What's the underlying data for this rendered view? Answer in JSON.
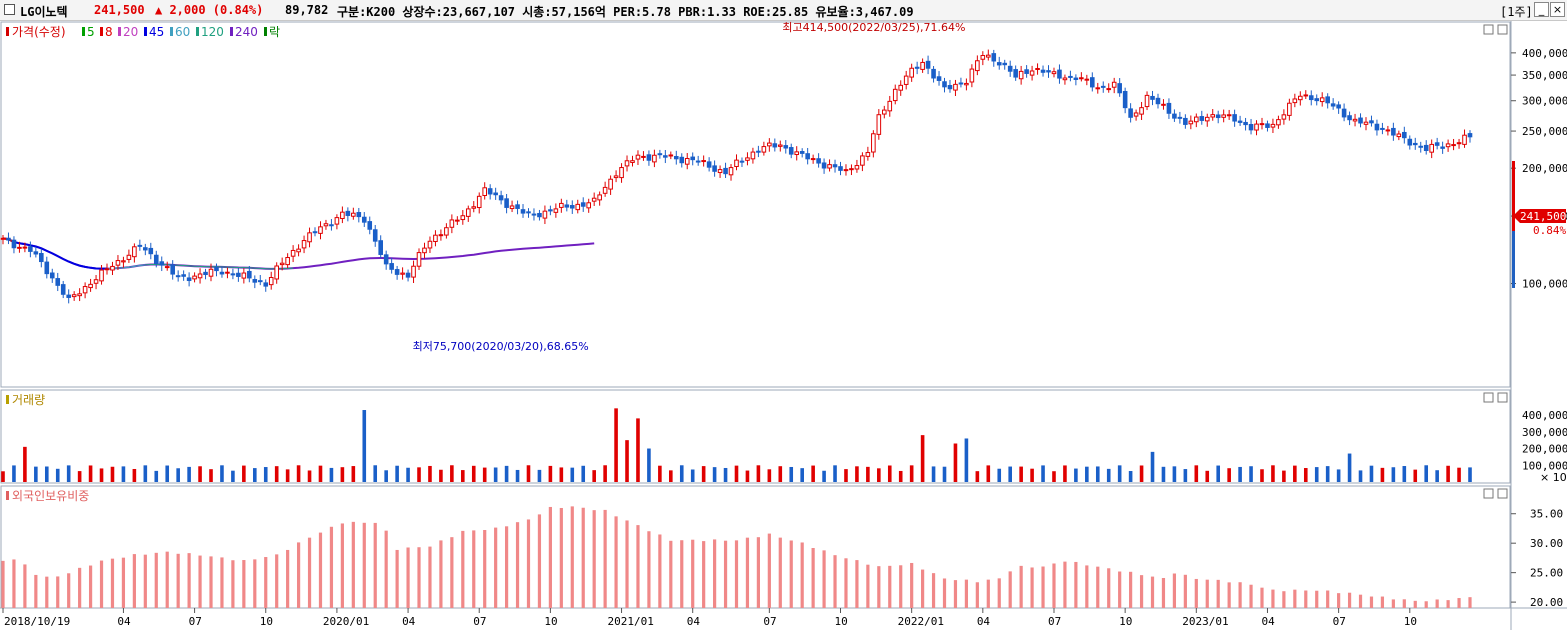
{
  "header": {
    "name": "LG이노텍",
    "price": "241,500",
    "change": "▲ 2,000 (0.84%)",
    "volume": "89,782",
    "info": "구분:K200 상장수:23,667,107 시총:57,156억 PER:5.78 PBR:1.33 ROE:25.85 유보율:3,467.09",
    "period": "[1주]",
    "min_btn": "_",
    "max_btn": "□",
    "close_btn": "×"
  },
  "legend": {
    "price": {
      "label": "가격(수정)",
      "color": "#d40000"
    },
    "mas": [
      {
        "label": "5",
        "color": "#00a000"
      },
      {
        "label": "8",
        "color": "#e00000"
      },
      {
        "label": "20",
        "color": "#c040c0"
      },
      {
        "label": "45",
        "color": "#0000e0"
      },
      {
        "label": "60",
        "color": "#40a0c0"
      },
      {
        "label": "120",
        "color": "#20a080"
      },
      {
        "label": "240",
        "color": "#7020c0"
      }
    ],
    "extra": {
      "label": "락",
      "color": "#008000"
    }
  },
  "volume_panel": {
    "title": "거래량",
    "unit": "× 10"
  },
  "foreign_panel": {
    "title": "외국인보유비중"
  },
  "chart_data": [
    {
      "type": "candlestick",
      "title": "LG이노텍",
      "y_ticks": [
        100000,
        150000,
        200000,
        250000,
        300000,
        350000,
        400000
      ],
      "y_tick_labels": [
        "100,000",
        "150,000",
        "200,000",
        "250,000",
        "300,000",
        "350,000",
        "400,000"
      ],
      "ylim": [
        55000,
        440000
      ],
      "x_labels": [
        "2018/10/19",
        "04",
        "07",
        "10",
        "2020/01",
        "04",
        "07",
        "10",
        "2021/01",
        "04",
        "07",
        "10",
        "2022/01",
        "04",
        "07",
        "10",
        "2023/01",
        "04",
        "07",
        "10"
      ],
      "x_label_index": [
        0,
        22,
        35,
        48,
        61,
        74,
        87,
        100,
        113,
        126,
        140,
        153,
        166,
        179,
        192,
        205,
        218,
        231,
        244,
        257
      ],
      "n_weeks": 269,
      "close_anchors": [
        [
          0,
          130000
        ],
        [
          5,
          122000
        ],
        [
          12,
          90000
        ],
        [
          18,
          106000
        ],
        [
          25,
          125000
        ],
        [
          32,
          103000
        ],
        [
          40,
          108000
        ],
        [
          48,
          100000
        ],
        [
          55,
          130000
        ],
        [
          62,
          152000
        ],
        [
          66,
          148000
        ],
        [
          70,
          110000
        ],
        [
          74,
          105000
        ],
        [
          78,
          130000
        ],
        [
          84,
          150000
        ],
        [
          88,
          175000
        ],
        [
          92,
          162000
        ],
        [
          96,
          150000
        ],
        [
          102,
          158000
        ],
        [
          108,
          163000
        ],
        [
          112,
          195000
        ],
        [
          116,
          215000
        ],
        [
          120,
          215000
        ],
        [
          126,
          210000
        ],
        [
          132,
          195000
        ],
        [
          138,
          225000
        ],
        [
          142,
          230000
        ],
        [
          146,
          215000
        ],
        [
          150,
          205000
        ],
        [
          154,
          195000
        ],
        [
          158,
          220000
        ],
        [
          160,
          270000
        ],
        [
          163,
          320000
        ],
        [
          165,
          345000
        ],
        [
          168,
          380000
        ],
        [
          172,
          320000
        ],
        [
          176,
          340000
        ],
        [
          179,
          395000
        ],
        [
          182,
          380000
        ],
        [
          185,
          345000
        ],
        [
          188,
          365000
        ],
        [
          192,
          350000
        ],
        [
          196,
          345000
        ],
        [
          200,
          325000
        ],
        [
          203,
          330000
        ],
        [
          206,
          270000
        ],
        [
          209,
          305000
        ],
        [
          212,
          290000
        ],
        [
          216,
          260000
        ],
        [
          220,
          275000
        ],
        [
          225,
          270000
        ],
        [
          228,
          255000
        ],
        [
          232,
          260000
        ],
        [
          237,
          310000
        ],
        [
          240,
          305000
        ],
        [
          243,
          290000
        ],
        [
          247,
          265000
        ],
        [
          252,
          255000
        ],
        [
          256,
          237000
        ],
        [
          260,
          225000
        ],
        [
          263,
          228000
        ],
        [
          268,
          241500
        ]
      ],
      "high_annotation": {
        "label": "최고414,500(2022/03/25),71.64%",
        "value": 414500,
        "index": 178
      },
      "low_annotation": {
        "label": "최저75,700(2020/03/20),68.65%",
        "value": 75700,
        "index": 73
      },
      "last_price_label": "241,500",
      "last_change_label": "0.84%",
      "moving_averages": [
        5,
        8,
        20,
        45,
        60,
        120,
        240
      ]
    },
    {
      "type": "bar",
      "title": "거래량",
      "y_ticks": [
        100000,
        200000,
        300000,
        400000
      ],
      "y_tick_labels": [
        "100,000",
        "200,000",
        "300,000",
        "400,000"
      ],
      "ylim": [
        0,
        460000
      ],
      "unit": "× 10",
      "spikes": [
        [
          3,
          190000
        ],
        [
          4,
          210000
        ],
        [
          15,
          160000
        ],
        [
          65,
          300000
        ],
        [
          66,
          430000
        ],
        [
          67,
          190000
        ],
        [
          97,
          180000
        ],
        [
          112,
          440000
        ],
        [
          114,
          250000
        ],
        [
          116,
          380000
        ],
        [
          118,
          200000
        ],
        [
          165,
          220000
        ],
        [
          167,
          390000
        ],
        [
          168,
          280000
        ],
        [
          171,
          400000
        ],
        [
          173,
          350000
        ],
        [
          174,
          230000
        ],
        [
          176,
          260000
        ],
        [
          181,
          220000
        ],
        [
          205,
          390000
        ],
        [
          210,
          180000
        ],
        [
          246,
          170000
        ],
        [
          265,
          120000
        ]
      ],
      "base_volume": 80000
    },
    {
      "type": "bar",
      "title": "외국인보유비중",
      "y_ticks": [
        20,
        25,
        30,
        35
      ],
      "y_tick_labels": [
        "20.00",
        "25.00",
        "30.00",
        "35.00"
      ],
      "ylim": [
        19,
        37.5
      ],
      "anchors": [
        [
          0,
          27
        ],
        [
          3,
          27.5
        ],
        [
          5,
          25
        ],
        [
          9,
          24
        ],
        [
          12,
          25
        ],
        [
          18,
          27
        ],
        [
          24,
          28
        ],
        [
          30,
          28.5
        ],
        [
          36,
          28
        ],
        [
          44,
          27
        ],
        [
          50,
          28
        ],
        [
          56,
          31
        ],
        [
          62,
          33.5
        ],
        [
          69,
          33.5
        ],
        [
          72,
          29
        ],
        [
          78,
          29.5
        ],
        [
          84,
          32
        ],
        [
          90,
          32.5
        ],
        [
          96,
          34
        ],
        [
          100,
          36
        ],
        [
          104,
          36.2
        ],
        [
          110,
          35.5
        ],
        [
          116,
          33
        ],
        [
          122,
          30.5
        ],
        [
          128,
          30.5
        ],
        [
          134,
          30.5
        ],
        [
          140,
          31.5
        ],
        [
          146,
          30
        ],
        [
          152,
          28
        ],
        [
          156,
          27
        ],
        [
          160,
          26
        ],
        [
          166,
          26.5
        ],
        [
          172,
          24
        ],
        [
          178,
          23.5
        ],
        [
          182,
          24
        ],
        [
          185,
          26
        ],
        [
          190,
          26
        ],
        [
          194,
          27
        ],
        [
          200,
          26
        ],
        [
          206,
          25
        ],
        [
          212,
          24
        ],
        [
          214,
          25
        ],
        [
          218,
          24
        ],
        [
          224,
          23.5
        ],
        [
          228,
          23
        ],
        [
          232,
          22
        ],
        [
          240,
          22
        ],
        [
          246,
          21.5
        ],
        [
          252,
          20.8
        ],
        [
          258,
          20.2
        ],
        [
          262,
          20.3
        ],
        [
          268,
          20.8
        ]
      ]
    }
  ]
}
